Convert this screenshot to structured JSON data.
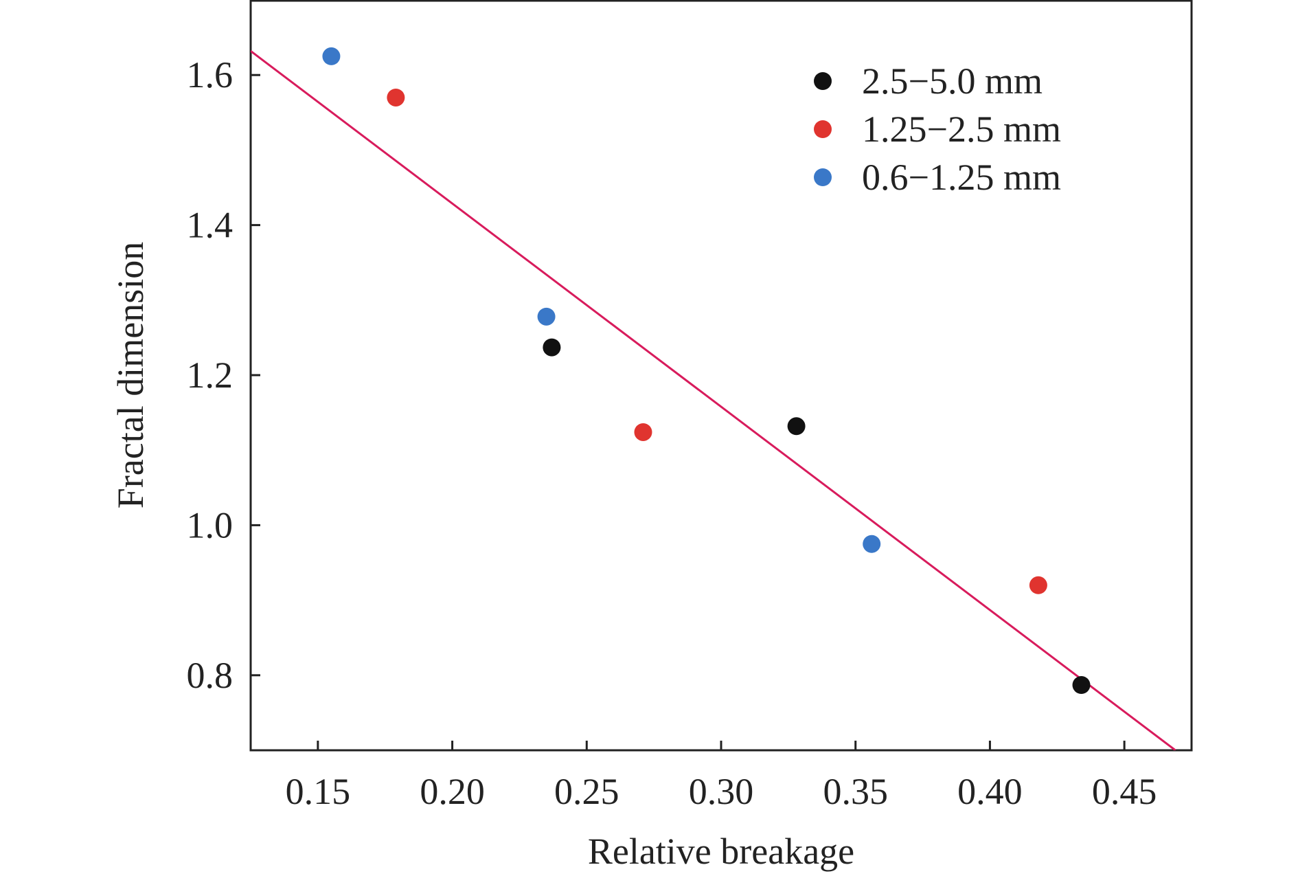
{
  "chart_data": {
    "type": "scatter",
    "title": "",
    "xlabel": "Relative breakage",
    "ylabel": "Fractal dimension",
    "xlim": [
      0.125,
      0.475
    ],
    "ylim": [
      0.7,
      1.7
    ],
    "xticks": [
      0.15,
      0.2,
      0.25,
      0.3,
      0.35,
      0.4,
      0.45
    ],
    "xtick_labels": [
      "0.15",
      "0.20",
      "0.25",
      "0.30",
      "0.35",
      "0.40",
      "0.45"
    ],
    "yticks": [
      0.8,
      1.0,
      1.2,
      1.4,
      1.6
    ],
    "ytick_labels": [
      "0.8",
      "1.0",
      "1.2",
      "1.4",
      "1.6"
    ],
    "grid": false,
    "legend_position": "top-right",
    "series": [
      {
        "name": "2.5−5.0 mm",
        "color": "#111111",
        "points": [
          {
            "x": 0.237,
            "y": 1.237
          },
          {
            "x": 0.328,
            "y": 1.132
          },
          {
            "x": 0.434,
            "y": 0.787
          }
        ]
      },
      {
        "name": "1.25−2.5 mm",
        "color": "#e0342f",
        "points": [
          {
            "x": 0.179,
            "y": 1.57
          },
          {
            "x": 0.271,
            "y": 1.124
          },
          {
            "x": 0.418,
            "y": 0.92
          }
        ]
      },
      {
        "name": "0.6−1.25 mm",
        "color": "#3a78c8",
        "points": [
          {
            "x": 0.155,
            "y": 1.625
          },
          {
            "x": 0.235,
            "y": 1.278
          },
          {
            "x": 0.356,
            "y": 0.975
          }
        ]
      }
    ],
    "fit_line": {
      "color": "#d81b5c",
      "x": [
        0.125,
        0.469
      ],
      "y": [
        1.632,
        0.7
      ]
    }
  }
}
